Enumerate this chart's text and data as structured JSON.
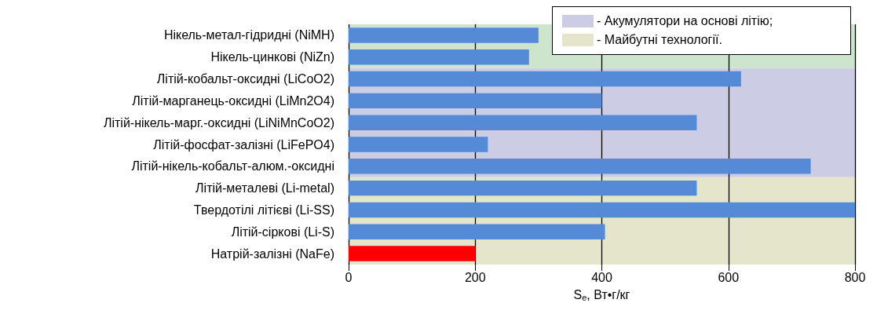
{
  "chart_data": {
    "type": "bar",
    "orientation": "horizontal",
    "xlabel": "S$_{e}$, Вт•г/кг",
    "categories": [
      "Нікель-метал-гідридні (NiMH)",
      "Нікель-цинкові (NiZn)",
      "Літій-кобальт-оксидні (LiCoO2)",
      "Літій-марганець-оксидні (LiMn2O4)",
      "Літій-нікель-марг.-оксидні (LiNiMnCoO2)",
      "Літій-фосфат-залізні (LiFePO4)",
      "Літій-нікель-кобальт-алюм.-оксидні",
      "Літій-металеві (Li-metal)",
      "Твердотілі літієві (Li-SS)",
      "Літій-сіркові (Li-S)",
      "Натрій-залізні (NaFe)"
    ],
    "values": [
      300,
      285,
      620,
      400,
      550,
      220,
      730,
      550,
      800,
      405,
      200
    ],
    "colors": [
      "#558ad6",
      "#558ad6",
      "#558ad6",
      "#558ad6",
      "#558ad6",
      "#558ad6",
      "#558ad6",
      "#558ad6",
      "#558ad6",
      "#558ad6",
      "#ff0000"
    ],
    "xlim": [
      0,
      800
    ],
    "xticks": [
      0,
      200,
      400,
      600,
      800
    ],
    "grid": "x",
    "legend": "top right",
    "bands": [
      {
        "axis": "y",
        "from": "Літій-кобальт-оксидні (LiCoO2)",
        "to": "Літій-нікель-кобальт-алюм.-оксидні",
        "label": "- Акумулятори на основі літію;",
        "color": "#cccce5"
      },
      {
        "axis": "y",
        "from": "Літій-металеві (Li-metal)",
        "to": "Натрій-залізні (NaFe)",
        "label": "- Майбутні технології.",
        "color": "#e5e5cc"
      },
      {
        "axis": "y",
        "from": "Нікель-метал-гідридні (NiMH)",
        "to": "Нікель-цинкові (NiZn)",
        "color": "#cde5cc"
      }
    ]
  }
}
